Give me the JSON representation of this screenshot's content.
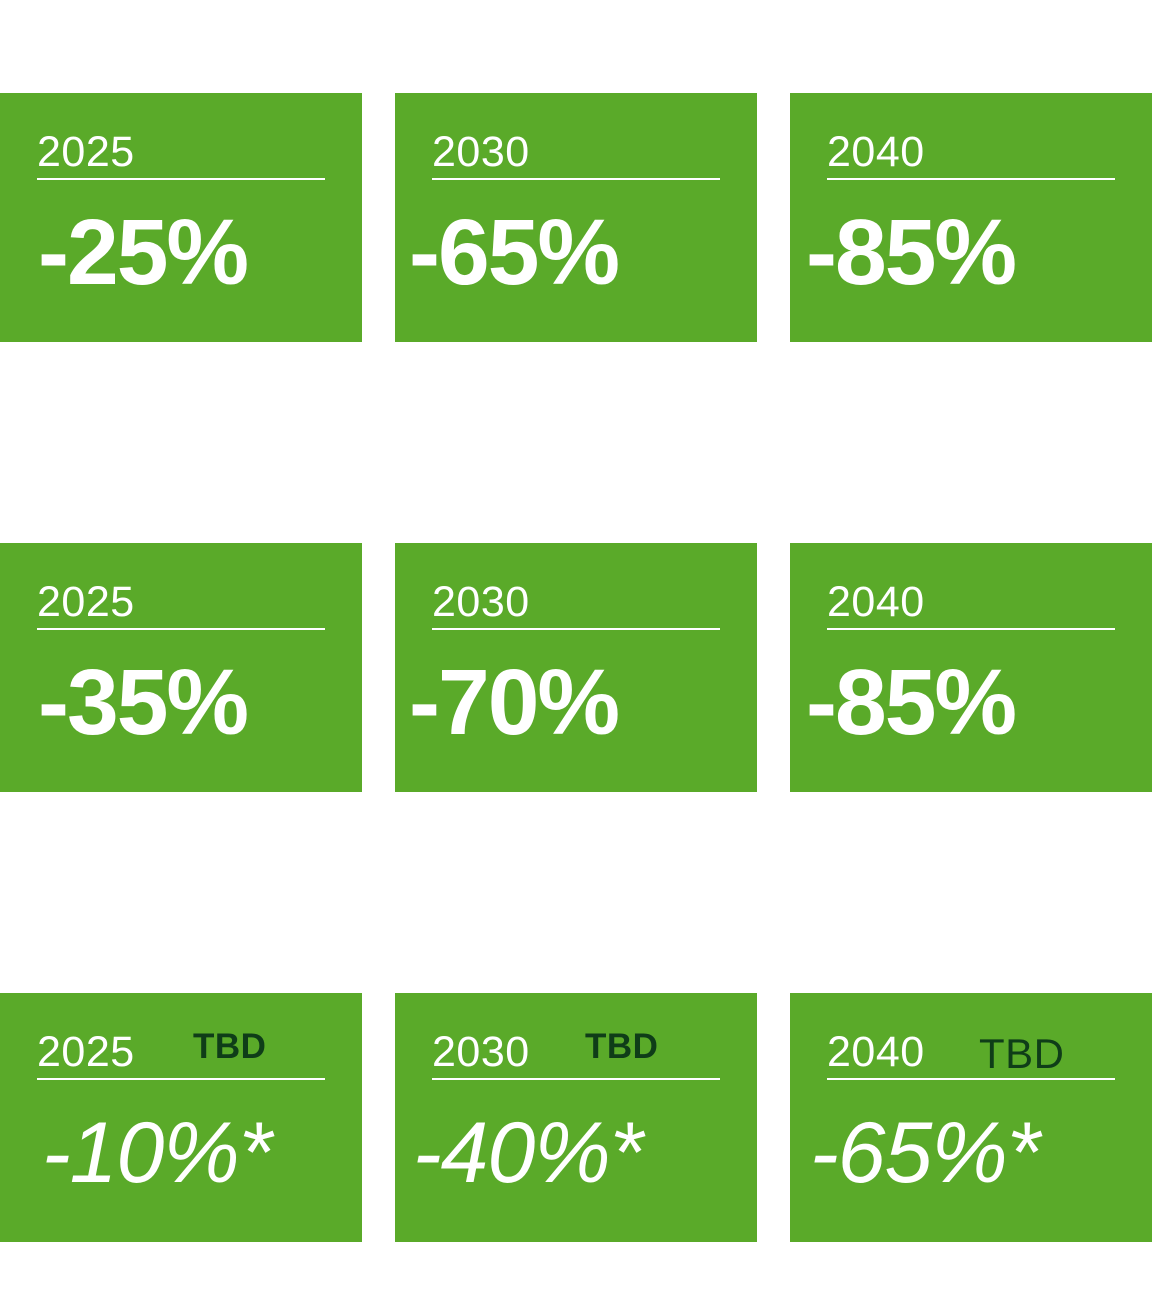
{
  "rows": [
    {
      "cards": [
        {
          "year": "2025",
          "tbd": "",
          "value": "-25%"
        },
        {
          "year": "2030",
          "tbd": "",
          "value": "-65%"
        },
        {
          "year": "2040",
          "tbd": "",
          "value": "-85%"
        }
      ]
    },
    {
      "cards": [
        {
          "year": "2025",
          "tbd": "",
          "value": "-35%"
        },
        {
          "year": "2030",
          "tbd": "",
          "value": "-70%"
        },
        {
          "year": "2040",
          "tbd": "",
          "value": "-85%"
        }
      ]
    },
    {
      "cards": [
        {
          "year": "2025",
          "tbd": "TBD",
          "value": "-10%*"
        },
        {
          "year": "2030",
          "tbd": "TBD",
          "value": "-40%*"
        },
        {
          "year": "2040",
          "tbd": "TBD",
          "value": "-65%*"
        }
      ]
    }
  ],
  "colors": {
    "card_background": "#5aaa29",
    "text": "#ffffff",
    "tbd_text": "#0f3d18"
  }
}
